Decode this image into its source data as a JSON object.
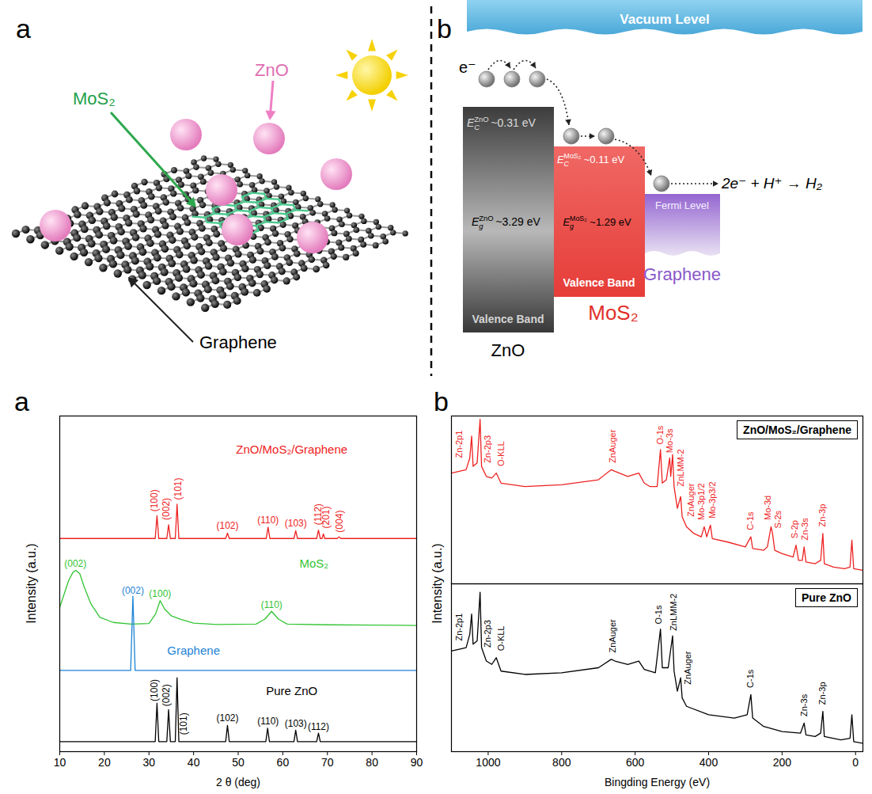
{
  "diagram": {
    "panel_a": {
      "letter": "a",
      "labels": {
        "mos2": "MoS₂",
        "zno": "ZnO",
        "graphene": "Graphene"
      }
    },
    "panel_b": {
      "letter": "b",
      "vacuum_level": "Vacuum Level",
      "electron": "e⁻",
      "zno": {
        "name": "ZnO",
        "conduction_band": {
          "symbol": "E",
          "sub": "C",
          "sup": "ZnO",
          "value": "~0.31 eV"
        },
        "band_gap": {
          "symbol": "E",
          "sub": "g",
          "sup": "ZnO",
          "value": "~3.29 eV"
        },
        "valence_band": "Valence Band"
      },
      "mos2": {
        "name": "MoS₂",
        "conduction_band": {
          "symbol": "E",
          "sub": "C",
          "sup": "MoS₂",
          "value": "~0.11 eV"
        },
        "band_gap": {
          "symbol": "E",
          "sub": "g",
          "sup": "MoS₂",
          "value": "~1.29 eV"
        },
        "valence_band": "Valence Band"
      },
      "graphene": {
        "name": "Graphene",
        "fermi_level": "Fermi Level"
      },
      "reaction": "2e⁻ + H⁺ → H₂"
    }
  },
  "chart_data": [
    {
      "type": "line",
      "panel": "a",
      "xlabel": "2 θ (deg)",
      "ylabel": "Intensity (a.u.)",
      "xlim": [
        10,
        90
      ],
      "xticks": [
        10,
        20,
        30,
        40,
        50,
        60,
        70,
        80,
        90
      ],
      "ylim": [
        0,
        100
      ],
      "tick_labels": "x",
      "series": [
        {
          "name": "ZnO/MoS₂/Graphene",
          "color": "#ee2222",
          "name_at": [
            62,
            90
          ],
          "x": [
            10,
            31.4,
            31.8,
            32.2,
            34.0,
            34.4,
            34.8,
            35.9,
            36.3,
            36.7,
            47.2,
            47.6,
            48.0,
            56.3,
            56.7,
            57.1,
            62.5,
            62.9,
            63.3,
            67.6,
            68.0,
            68.4,
            68.8,
            69.1,
            69.4,
            72.2,
            72.6,
            73.0,
            90
          ],
          "values": [
            63.5,
            63.5,
            70.3,
            63.5,
            63.5,
            67.6,
            63.5,
            63.5,
            73.7,
            63.5,
            63.5,
            65.1,
            63.5,
            63.5,
            66.9,
            63.5,
            63.5,
            65.8,
            63.5,
            63.5,
            66,
            63.5,
            63.5,
            64.9,
            63.5,
            63.5,
            64,
            63.5,
            63.5
          ],
          "annotations": [
            {
              "text": "(100)",
              "x": 31.2,
              "y": 71.5,
              "orientation": "vertical"
            },
            {
              "text": "(002)",
              "x": 33.9,
              "y": 69,
              "orientation": "vertical"
            },
            {
              "text": "(101)",
              "x": 36.5,
              "y": 75,
              "orientation": "vertical"
            },
            {
              "text": "(102)",
              "x": 47.6,
              "y": 66.3
            },
            {
              "text": "(110)",
              "x": 56.7,
              "y": 68
            },
            {
              "text": "(103)",
              "x": 62.9,
              "y": 67
            },
            {
              "text": "(112)",
              "x": 68,
              "y": 67.5,
              "orientation": "vertical"
            },
            {
              "text": "(201)",
              "x": 69.8,
              "y": 66.5,
              "orientation": "vertical"
            },
            {
              "text": "(004)",
              "x": 72.8,
              "y": 65.3,
              "orientation": "vertical"
            }
          ]
        },
        {
          "name": "MoS₂",
          "color": "#33c433",
          "name_at": [
            67,
            56
          ],
          "x": [
            10,
            11,
            12,
            13,
            13.6,
            14.5,
            15.5,
            17,
            19,
            22,
            26,
            30,
            31.5,
            32.5,
            33.5,
            35,
            37,
            40,
            45,
            54,
            56,
            57.5,
            59,
            61,
            70,
            80,
            90
          ],
          "values": [
            43,
            47,
            51,
            53.5,
            54,
            53,
            49,
            44,
            40,
            38.5,
            38,
            38.2,
            41,
            45,
            42.5,
            40.5,
            39.5,
            38.3,
            37.9,
            38,
            39.5,
            41.8,
            39.5,
            38,
            37.8,
            37.7,
            37.6
          ],
          "annotations": [
            {
              "text": "(002)",
              "x": 13.5,
              "y": 55
            },
            {
              "text": "(100)",
              "x": 32.5,
              "y": 46
            },
            {
              "text": "(110)",
              "x": 57.5,
              "y": 42.8
            }
          ]
        },
        {
          "name": "Graphene",
          "color": "#1e84d6",
          "name_at": [
            40,
            30
          ],
          "x": [
            10,
            25.9,
            26.4,
            26.9,
            90
          ],
          "values": [
            24.2,
            24.2,
            46.3,
            24.2,
            24.2
          ],
          "annotations": [
            {
              "text": "(002)",
              "x": 26.4,
              "y": 47
            }
          ]
        },
        {
          "name": "Pure ZnO",
          "color": "#000000",
          "name_at": [
            62,
            18
          ],
          "x": [
            10,
            31.4,
            31.8,
            32.2,
            34.0,
            34.4,
            34.8,
            35.9,
            36.3,
            36.7,
            47.2,
            47.6,
            48.0,
            56.2,
            56.6,
            57.0,
            62.5,
            62.9,
            63.3,
            67.6,
            68.0,
            68.4,
            90
          ],
          "values": [
            3,
            3,
            14.4,
            3,
            3,
            12.5,
            3,
            3,
            22,
            3,
            3,
            7.8,
            3,
            3,
            7,
            3,
            3,
            6.4,
            3,
            3,
            5.5,
            3,
            3
          ],
          "annotations": [
            {
              "text": "(100)",
              "x": 31.2,
              "y": 15,
              "orientation": "vertical"
            },
            {
              "text": "(002)",
              "x": 33.9,
              "y": 13.5,
              "orientation": "vertical"
            },
            {
              "text": "(101)",
              "x": 37.8,
              "y": 5,
              "orientation": "vertical"
            },
            {
              "text": "(102)",
              "x": 47.6,
              "y": 9
            },
            {
              "text": "(110)",
              "x": 56.7,
              "y": 8.2
            },
            {
              "text": "(103)",
              "x": 62.9,
              "y": 7.5
            },
            {
              "text": "(112)",
              "x": 68,
              "y": 6.6
            }
          ]
        }
      ]
    },
    {
      "type": "line",
      "panel": "b",
      "xlim": [
        1100,
        -20
      ],
      "ylim": [
        0,
        100
      ],
      "tick_labels": false,
      "legend": "top-right",
      "series": [
        {
          "name": "ZnO/MoS₂/Graphene",
          "color": "#ee2222",
          "x": [
            1100,
            1060,
            1050,
            1045,
            1041,
            1030,
            1022,
            1018,
            1005,
            990,
            978,
            965,
            900,
            800,
            700,
            665,
            655,
            620,
            590,
            575,
            560,
            540,
            531,
            526,
            515,
            506,
            503,
            498,
            494,
            485,
            476,
            472,
            460,
            440,
            420,
            412,
            405,
            395,
            390,
            350,
            300,
            285,
            280,
            250,
            240,
            230,
            226,
            220,
            200,
            170,
            162,
            155,
            145,
            140,
            135,
            110,
            95,
            89,
            85,
            60,
            30,
            15,
            10,
            5,
            -20
          ],
          "values": [
            66,
            68,
            75,
            88,
            70,
            72,
            98,
            70,
            64,
            63,
            66,
            60,
            58,
            59,
            62,
            68,
            67,
            64,
            66,
            60,
            58,
            58,
            80,
            60,
            62,
            75,
            64,
            77,
            58,
            45,
            52,
            40,
            34,
            30,
            28,
            34,
            28,
            35,
            27,
            25,
            22,
            28,
            21,
            20,
            22,
            34,
            30,
            20,
            18,
            16,
            23,
            14,
            14,
            22,
            13,
            12,
            14,
            30,
            12,
            10,
            9,
            10,
            26,
            9,
            8
          ],
          "annotations": [
            {
              "text": "Zn-2p1",
              "x": 1078,
              "y": 75,
              "orientation": "vertical"
            },
            {
              "text": "Zn-2p3",
              "x": 1002,
              "y": 72,
              "orientation": "vertical"
            },
            {
              "text": "O-KLL",
              "x": 965,
              "y": 70,
              "orientation": "vertical"
            },
            {
              "text": "ZnAuger",
              "x": 660,
              "y": 72,
              "orientation": "vertical"
            },
            {
              "text": "O-1s",
              "x": 531,
              "y": 83,
              "orientation": "vertical"
            },
            {
              "text": "Mo-3s",
              "x": 506,
              "y": 78,
              "orientation": "vertical"
            },
            {
              "text": "ZnLMM-2",
              "x": 476,
              "y": 58,
              "orientation": "vertical"
            },
            {
              "text": "ZnAuger",
              "x": 448,
              "y": 40,
              "orientation": "vertical"
            },
            {
              "text": "Mo-3p1/2",
              "x": 420,
              "y": 38,
              "orientation": "vertical"
            },
            {
              "text": "Mo-3p3/2",
              "x": 390,
              "y": 39,
              "orientation": "vertical"
            },
            {
              "text": "C-1s",
              "x": 285,
              "y": 32,
              "orientation": "vertical"
            },
            {
              "text": "Mo-3d",
              "x": 238,
              "y": 38,
              "orientation": "vertical"
            },
            {
              "text": "S-2s",
              "x": 210,
              "y": 33,
              "orientation": "vertical"
            },
            {
              "text": "S-2p",
              "x": 165,
              "y": 27,
              "orientation": "vertical"
            },
            {
              "text": "Zn-3s",
              "x": 137,
              "y": 26,
              "orientation": "vertical"
            },
            {
              "text": "Zn-3p",
              "x": 89,
              "y": 34,
              "orientation": "vertical"
            }
          ]
        }
      ]
    },
    {
      "type": "line",
      "xlabel": "Bingding Energy (eV)",
      "ylabel": "Intensity (a.u.)",
      "xlim": [
        1100,
        -20
      ],
      "xticks": [
        1000,
        800,
        600,
        400,
        200,
        0
      ],
      "ylim": [
        0,
        100
      ],
      "tick_labels": "x",
      "legend": "top-right",
      "series": [
        {
          "name": "Pure ZnO",
          "color": "#000000",
          "x": [
            1100,
            1060,
            1050,
            1045,
            1041,
            1030,
            1022,
            1018,
            1005,
            990,
            978,
            965,
            900,
            800,
            700,
            665,
            655,
            620,
            590,
            575,
            545,
            531,
            526,
            510,
            498,
            494,
            485,
            476,
            472,
            460,
            400,
            330,
            295,
            285,
            280,
            250,
            200,
            150,
            140,
            135,
            110,
            95,
            89,
            85,
            40,
            15,
            10,
            5,
            -20
          ],
          "values": [
            60,
            62,
            70,
            82,
            64,
            66,
            95,
            62,
            54,
            52,
            56,
            48,
            46,
            47,
            50,
            55,
            54,
            52,
            54,
            49,
            47,
            73,
            50,
            50,
            69,
            48,
            36,
            44,
            32,
            27,
            22,
            20,
            22,
            34,
            20,
            15,
            12,
            11,
            17,
            10,
            9,
            11,
            24,
            9,
            7,
            8,
            22,
            6,
            5
          ],
          "annotations": [
            {
              "text": "Zn-2p1",
              "x": 1078,
              "y": 66,
              "orientation": "vertical"
            },
            {
              "text": "Zn-2p3",
              "x": 1002,
              "y": 62,
              "orientation": "vertical"
            },
            {
              "text": "O-KLL",
              "x": 965,
              "y": 60,
              "orientation": "vertical"
            },
            {
              "text": "ZnAuger",
              "x": 660,
              "y": 59,
              "orientation": "vertical"
            },
            {
              "text": "O-1s",
              "x": 535,
              "y": 76,
              "orientation": "vertical"
            },
            {
              "text": "ZnLMM-2",
              "x": 494,
              "y": 72,
              "orientation": "vertical"
            },
            {
              "text": "ZnAuger",
              "x": 455,
              "y": 40,
              "orientation": "vertical"
            },
            {
              "text": "C-1s",
              "x": 285,
              "y": 38,
              "orientation": "vertical"
            },
            {
              "text": "Zn-3s",
              "x": 140,
              "y": 21,
              "orientation": "vertical"
            },
            {
              "text": "Zn-3p",
              "x": 89,
              "y": 28,
              "orientation": "vertical"
            }
          ]
        }
      ]
    }
  ]
}
